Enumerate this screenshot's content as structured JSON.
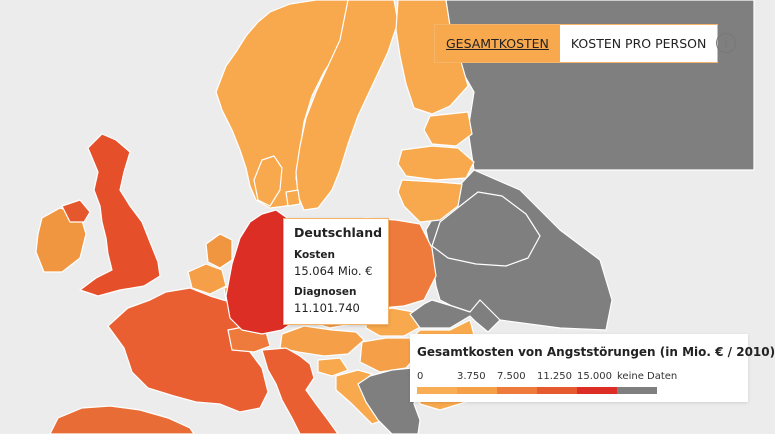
{
  "toggle": {
    "total_label": "GESAMTKOSTEN",
    "per_person_label": "KOSTEN PRO PERSON"
  },
  "info": {
    "glyph": "i"
  },
  "tooltip": {
    "country": "Deutschland",
    "cost_label": "Kosten",
    "cost_value": "15.064 Mio. €",
    "diagnoses_label": "Diagnosen",
    "diagnoses_value": "11.101.740"
  },
  "legend": {
    "title": "Gesamtkosten von Angststörungen (in Mio. € / 2010)",
    "ticks": [
      "0",
      "3.750",
      "7.500",
      "11.250",
      "15.000"
    ],
    "no_data_label": "keine Daten",
    "colors": [
      "#f9ad55",
      "#f5a047",
      "#ee7b3c",
      "#e65a30",
      "#dd2e25",
      "#7f7f7f"
    ]
  },
  "map": {
    "background": "#ececec",
    "regions": [
      {
        "name": "norway",
        "color": "#f9a94d"
      },
      {
        "name": "sweden",
        "color": "#f9a94d"
      },
      {
        "name": "finland",
        "color": "#f9a94d"
      },
      {
        "name": "estonia",
        "color": "#f9a94d"
      },
      {
        "name": "latvia",
        "color": "#f9a94d"
      },
      {
        "name": "lithuania",
        "color": "#f9a94d"
      },
      {
        "name": "denmark",
        "color": "#f9a94d"
      },
      {
        "name": "ireland",
        "color": "#f09640"
      },
      {
        "name": "northern-ireland",
        "color": "#e5582e"
      },
      {
        "name": "united-kingdom",
        "color": "#e5502b"
      },
      {
        "name": "netherlands",
        "color": "#f09640"
      },
      {
        "name": "belgium",
        "color": "#f5a048"
      },
      {
        "name": "luxembourg",
        "color": "#f9a94d"
      },
      {
        "name": "france",
        "color": "#e95f31"
      },
      {
        "name": "germany",
        "color": "#dd2e25"
      },
      {
        "name": "poland",
        "color": "#ee7b3c"
      },
      {
        "name": "czech-republic",
        "color": "#f3a048"
      },
      {
        "name": "slovakia",
        "color": "#f9a94d"
      },
      {
        "name": "austria",
        "color": "#f5a048"
      },
      {
        "name": "switzerland",
        "color": "#ee7b3c"
      },
      {
        "name": "hungary",
        "color": "#f5a048"
      },
      {
        "name": "slovenia",
        "color": "#f9a94d"
      },
      {
        "name": "croatia",
        "color": "#f9a94d"
      },
      {
        "name": "italy",
        "color": "#e95f31"
      },
      {
        "name": "spain",
        "color": "#e86c36"
      },
      {
        "name": "belarus",
        "color": "#7f7f7f"
      },
      {
        "name": "ukraine",
        "color": "#7f7f7f"
      },
      {
        "name": "russia",
        "color": "#7f7f7f"
      },
      {
        "name": "balkans",
        "color": "#7f7f7f"
      },
      {
        "name": "romania",
        "color": "#f9a94d"
      }
    ]
  }
}
